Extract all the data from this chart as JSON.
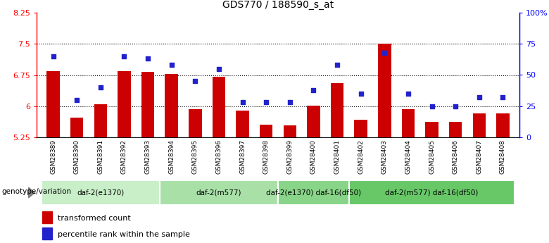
{
  "title": "GDS770 / 188590_s_at",
  "samples": [
    "GSM28389",
    "GSM28390",
    "GSM28391",
    "GSM28392",
    "GSM28393",
    "GSM28394",
    "GSM28395",
    "GSM28396",
    "GSM28397",
    "GSM28398",
    "GSM28399",
    "GSM28400",
    "GSM28401",
    "GSM28402",
    "GSM28403",
    "GSM28404",
    "GSM28405",
    "GSM28406",
    "GSM28407",
    "GSM28408"
  ],
  "bar_values": [
    6.85,
    5.72,
    6.05,
    6.85,
    6.83,
    6.77,
    5.93,
    6.7,
    5.9,
    5.55,
    5.53,
    6.02,
    6.55,
    5.68,
    7.5,
    5.93,
    5.62,
    5.62,
    5.82,
    5.82
  ],
  "dot_values": [
    65,
    30,
    40,
    65,
    63,
    58,
    45,
    55,
    28,
    28,
    28,
    38,
    58,
    35,
    68,
    35,
    25,
    25,
    32,
    32
  ],
  "ylim_left": [
    5.25,
    8.25
  ],
  "ylim_right": [
    0,
    100
  ],
  "yticks_left": [
    5.25,
    6.0,
    6.75,
    7.5,
    8.25
  ],
  "yticks_right": [
    0,
    25,
    50,
    75,
    100
  ],
  "ytick_labels_left": [
    "5.25",
    "6",
    "6.75",
    "7.5",
    "8.25"
  ],
  "ytick_labels_right": [
    "0",
    "25",
    "50",
    "75",
    "100%"
  ],
  "hlines": [
    6.0,
    6.75,
    7.5
  ],
  "bar_color": "#cc0000",
  "dot_color": "#2222cc",
  "bar_bottom": 5.25,
  "groups": [
    {
      "label": "daf-2(e1370)",
      "start": 0,
      "end": 5,
      "color": "#c8efc8"
    },
    {
      "label": "daf-2(m577)",
      "start": 5,
      "end": 10,
      "color": "#a8e0a8"
    },
    {
      "label": "daf-2(e1370) daf-16(df50)",
      "start": 10,
      "end": 13,
      "color": "#88d488"
    },
    {
      "label": "daf-2(m577) daf-16(df50)",
      "start": 13,
      "end": 20,
      "color": "#68c868"
    }
  ],
  "genotype_label": "genotype/variation",
  "legend_bar_label": "transformed count",
  "legend_dot_label": "percentile rank within the sample",
  "sample_bg_color": "#c8c8c8",
  "plot_bg_color": "#ffffff"
}
